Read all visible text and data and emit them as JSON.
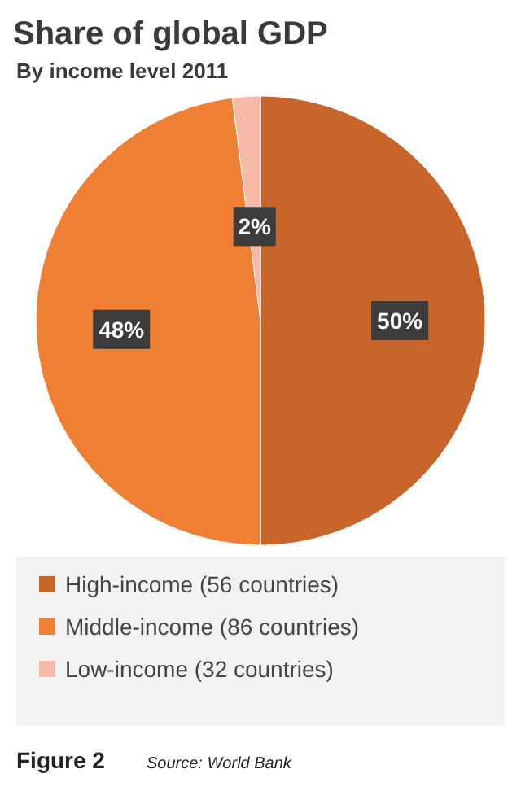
{
  "chart_data": {
    "type": "pie",
    "title": "Share of global GDP",
    "subtitle": "By income level 2011",
    "categories": [
      "High-income (56 countries)",
      "Middle-income (86 countries)",
      "Low-income (32 countries)"
    ],
    "values": [
      50,
      48,
      2
    ],
    "colors": [
      "#c8652a",
      "#ee7f33",
      "#f6b9a6"
    ],
    "value_labels": [
      "50%",
      "48%",
      "2%"
    ],
    "legend": "bottom",
    "annotations": [
      "Figure 2",
      "Source: World Bank"
    ]
  }
}
